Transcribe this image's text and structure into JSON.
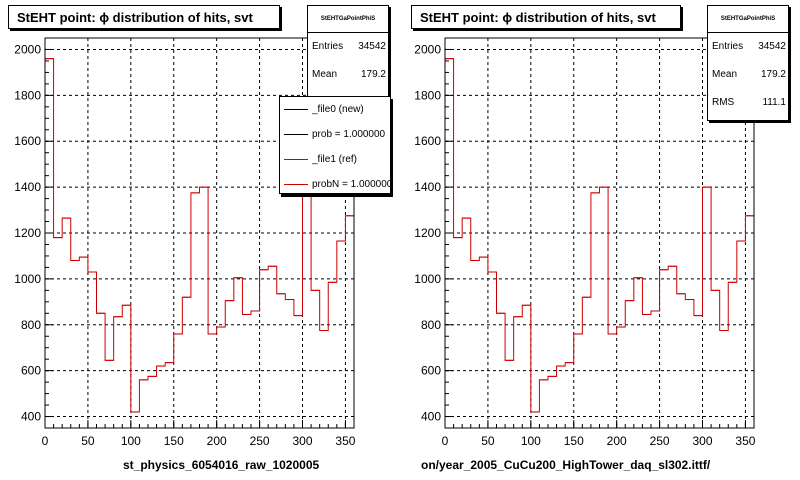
{
  "colors": {
    "histogram": "#cc0000",
    "reference": "#000000",
    "frame": "#000000",
    "grid": "#000000"
  },
  "panels": [
    {
      "title": "StEHT point:  ϕ distribution of hits, svt",
      "stats": {
        "name": "StEHTGaPointPhiS",
        "entries_label": "Entries",
        "entries": "34542",
        "mean_label": "Mean",
        "mean": "179.2"
      },
      "legend": [
        {
          "label": "_file0 (new)",
          "color": "#000000"
        },
        {
          "label": "prob = 1.000000",
          "color": "#000000"
        },
        {
          "label": "_file1 (ref)",
          "color": "#cc0000"
        },
        {
          "label": "probN = 1.000000",
          "color": "#cc0000"
        }
      ],
      "xname": "st_physics_6054016_raw_1020005"
    },
    {
      "title": "StEHT point:  ϕ distribution of hits, svt",
      "stats": {
        "name": "StEHTGaPointPhiS",
        "entries_label": "Entries",
        "entries": "34542",
        "mean_label": "Mean",
        "mean": "179.2",
        "rms_label": "RMS",
        "rms": "111.1"
      },
      "xname": "on/year_2005_CuCu200_HighTower_daq_sl302.ittf/"
    }
  ],
  "footer": "",
  "chart_data": [
    {
      "type": "histogram",
      "title": "StEHT point:  ϕ distribution of hits, svt",
      "xlabel": "st_physics_6054016_raw_1020005",
      "ylabel": "",
      "xlim": [
        0,
        360
      ],
      "ylim": [
        350,
        2050
      ],
      "xticks": [
        0,
        50,
        100,
        150,
        200,
        250,
        300,
        350
      ],
      "yticks": [
        400,
        600,
        800,
        1000,
        1200,
        1400,
        1600,
        1800,
        2000
      ],
      "grid": true,
      "legend_position": "top-right",
      "bin_width": 10,
      "bin_edges_start": 0,
      "values": [
        1960,
        1180,
        1265,
        1080,
        1095,
        1030,
        850,
        645,
        835,
        885,
        420,
        560,
        575,
        620,
        635,
        760,
        920,
        1375,
        1400,
        760,
        790,
        905,
        1005,
        845,
        860,
        1040,
        1055,
        935,
        910,
        840,
        1400,
        950,
        775,
        985,
        1165,
        1275
      ]
    },
    {
      "type": "histogram",
      "title": "StEHT point:  ϕ distribution of hits, svt",
      "xlabel": "on/year_2005_CuCu200_HighTower_daq_sl302.ittf/",
      "ylabel": "",
      "xlim": [
        0,
        360
      ],
      "ylim": [
        350,
        2050
      ],
      "xticks": [
        0,
        50,
        100,
        150,
        200,
        250,
        300,
        350
      ],
      "yticks": [
        400,
        600,
        800,
        1000,
        1200,
        1400,
        1600,
        1800,
        2000
      ],
      "grid": true,
      "bin_width": 10,
      "bin_edges_start": 0,
      "values": [
        1960,
        1180,
        1265,
        1080,
        1095,
        1030,
        850,
        645,
        835,
        885,
        420,
        560,
        575,
        620,
        635,
        760,
        920,
        1375,
        1400,
        760,
        790,
        905,
        1005,
        845,
        860,
        1040,
        1055,
        935,
        910,
        840,
        1400,
        950,
        775,
        985,
        1165,
        1275
      ]
    }
  ]
}
